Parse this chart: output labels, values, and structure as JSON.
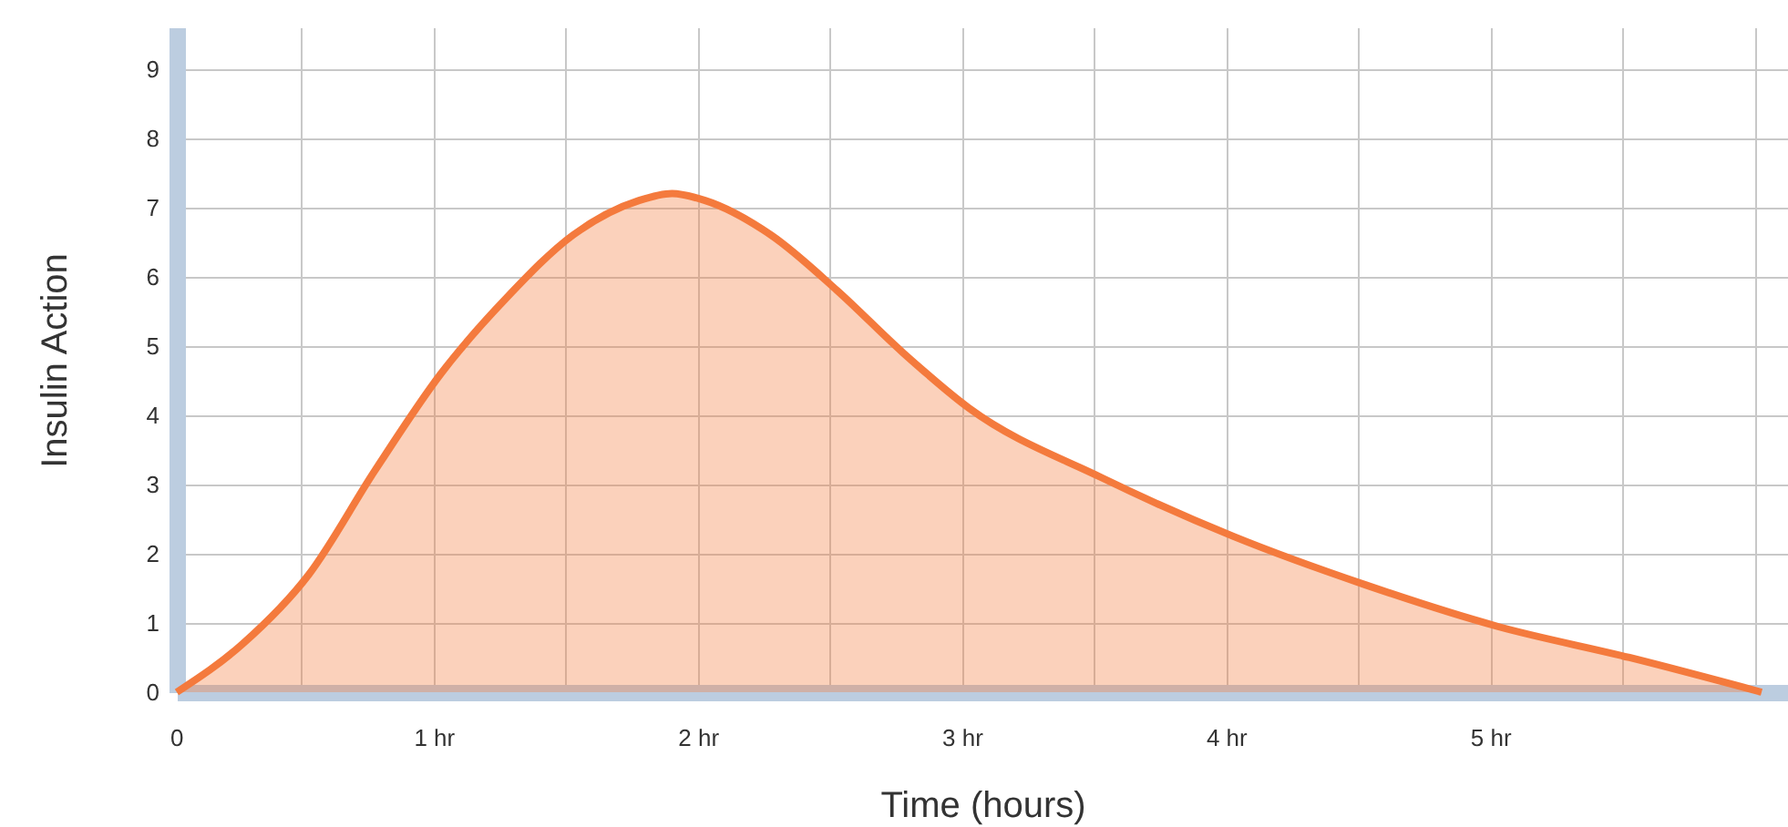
{
  "chart_data": {
    "type": "area",
    "xlabel": "Time (hours)",
    "ylabel": "Insulin Action",
    "x": [
      0,
      0.25,
      0.5,
      0.75,
      1,
      1.25,
      1.5,
      1.75,
      1.875,
      2,
      2.25,
      2.5,
      2.75,
      3,
      3.5,
      4,
      4.5,
      5,
      5.5,
      6
    ],
    "series": [
      {
        "color": "#f47a3d",
        "values": [
          0,
          0.7,
          1.7,
          3.2,
          4.6,
          5.7,
          6.6,
          7.1,
          7.2,
          7.1,
          6.6,
          5.8,
          4.9,
          4.1,
          3.1,
          2.25,
          1.55,
          0.95,
          0.5,
          0
        ]
      }
    ],
    "xlim": [
      0,
      6.1
    ],
    "ylim": [
      0,
      9.6
    ],
    "xticks": [
      0,
      {
        "value": 0.5,
        "label": null
      },
      {
        "value": 1,
        "label": "1 hr"
      },
      {
        "value": 1.5,
        "label": null
      },
      {
        "value": 2,
        "label": "2 hr"
      },
      {
        "value": 2.5,
        "label": null
      },
      {
        "value": 3,
        "label": "3 hr"
      },
      {
        "value": 3.5,
        "label": null
      },
      {
        "value": 4,
        "label": "4 hr"
      },
      {
        "value": 4.5,
        "label": null
      },
      {
        "value": 5,
        "label": "5 hr"
      },
      {
        "value": 5.5,
        "label": null
      },
      {
        "value": 6,
        "label": null
      }
    ],
    "yticks": [
      0,
      1,
      2,
      3,
      4,
      5,
      6,
      7,
      8,
      9
    ],
    "grid": true,
    "marker": "none"
  }
}
